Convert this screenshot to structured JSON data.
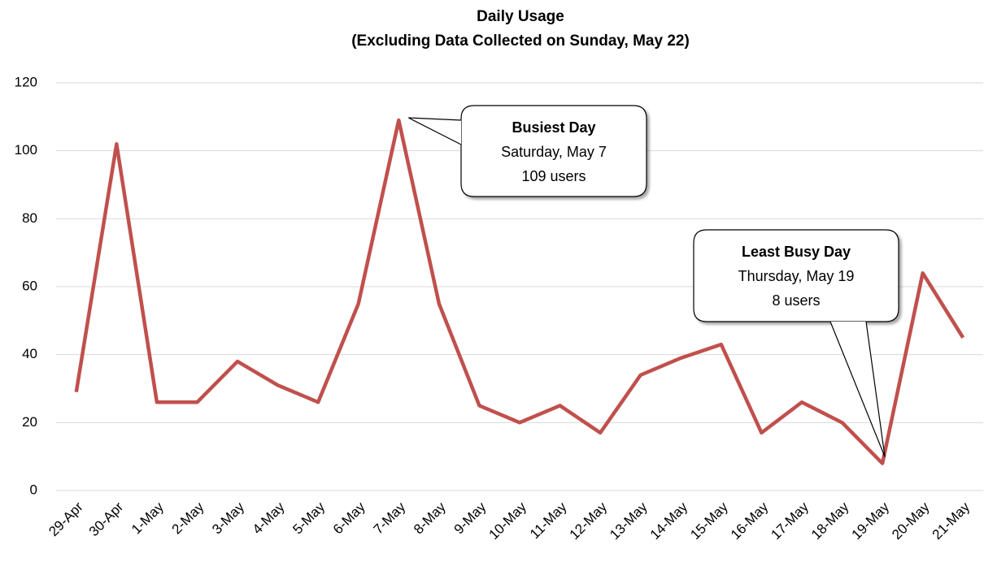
{
  "chart_data": {
    "type": "line",
    "title": "Daily Usage",
    "subtitle": "(Excluding Data Collected on Sunday, May 22)",
    "categories": [
      "29-Apr",
      "30-Apr",
      "1-May",
      "2-May",
      "3-May",
      "4-May",
      "5-May",
      "6-May",
      "7-May",
      "8-May",
      "9-May",
      "10-May",
      "11-May",
      "12-May",
      "13-May",
      "14-May",
      "15-May",
      "16-May",
      "17-May",
      "18-May",
      "19-May",
      "20-May",
      "21-May"
    ],
    "series": [
      {
        "color": "#c0504d",
        "values": [
          29,
          102,
          26,
          26,
          38,
          31,
          26,
          55,
          109,
          55,
          25,
          20,
          25,
          17,
          34,
          39,
          43,
          17,
          26,
          20,
          8,
          64,
          45
        ]
      }
    ],
    "ylim": [
      0,
      120
    ],
    "yticks": [
      0,
      20,
      40,
      60,
      80,
      100,
      120
    ],
    "grid": true,
    "annotations": [
      {
        "title": "Busiest Day",
        "lines": [
          "Saturday, May 7",
          "109 users"
        ]
      },
      {
        "title": "Least Busy Day",
        "lines": [
          "Thursday, May 19",
          "8 users"
        ]
      }
    ]
  }
}
